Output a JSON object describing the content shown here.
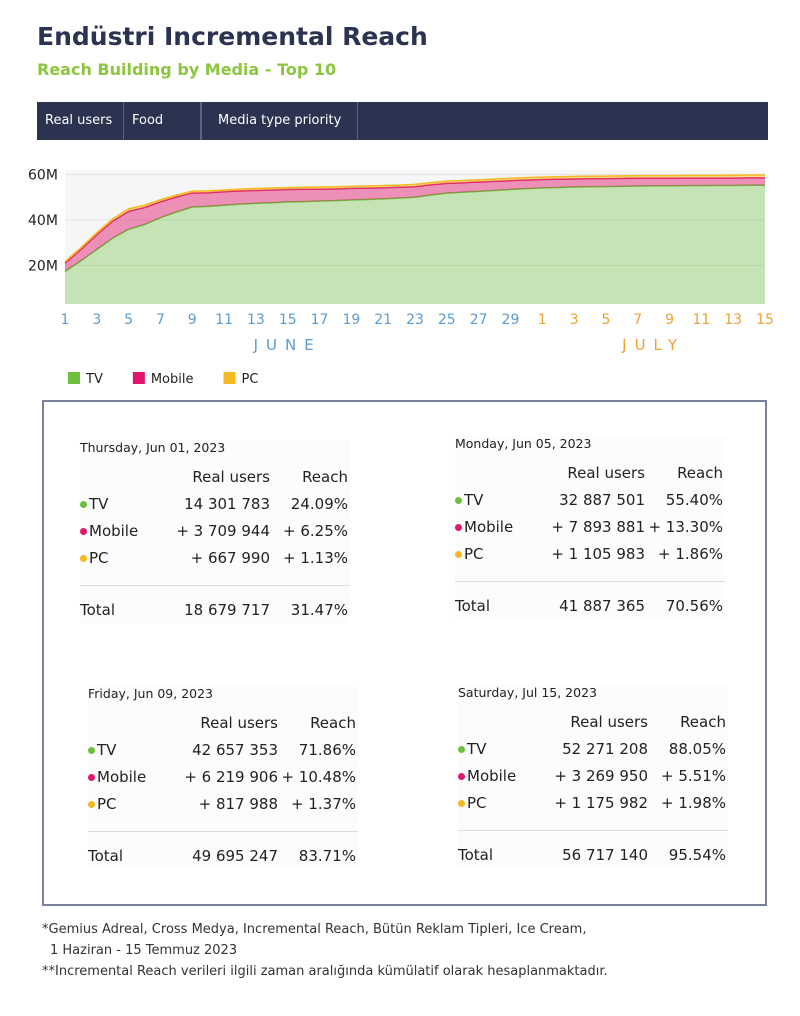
{
  "title": "Endüstri Incremental Reach",
  "subtitle": "Reach Building by Media - Top 10",
  "toolbar": [
    "Real users",
    "Food",
    "Media type priority"
  ],
  "chart_data": {
    "type": "stacked-area",
    "categories": [
      "1",
      null,
      "3",
      null,
      "5",
      null,
      "7",
      null,
      "9",
      null,
      "11",
      null,
      "13",
      null,
      "15",
      null,
      "17",
      null,
      "19",
      null,
      "21",
      null,
      "23",
      null,
      "25",
      null,
      "27",
      null,
      "29",
      null,
      "1",
      null,
      "3",
      null,
      "5",
      null,
      "7",
      null,
      "9",
      null,
      "11",
      null,
      "13",
      null,
      "15"
    ],
    "months": [
      "JUNE",
      "JULY"
    ],
    "series": [
      {
        "name": "TV",
        "color": "#6bbf3a",
        "values": [
          14.3,
          19,
          24,
          29,
          32.9,
          35,
          38,
          40.5,
          42.7,
          43,
          43.5,
          44,
          44.3,
          44.6,
          44.9,
          45.1,
          45.3,
          45.5,
          45.8,
          46,
          46.3,
          46.6,
          47,
          48,
          48.8,
          49.2,
          49.6,
          50,
          50.4,
          50.8,
          51.1,
          51.3,
          51.5,
          51.6,
          51.7,
          51.8,
          51.9,
          52,
          52,
          52.1,
          52.1,
          52.2,
          52.2,
          52.3,
          52.3
        ]
      },
      {
        "name": "Mobile",
        "color": "#e0156b",
        "values": [
          3.7,
          5,
          6.5,
          7.5,
          7.9,
          7.5,
          7,
          6.6,
          6.2,
          6,
          5.9,
          5.8,
          5.7,
          5.6,
          5.5,
          5.4,
          5.3,
          5.2,
          5.1,
          5,
          4.9,
          4.8,
          4.7,
          4.5,
          4.3,
          4.2,
          4.1,
          4,
          3.9,
          3.8,
          3.7,
          3.7,
          3.6,
          3.6,
          3.5,
          3.5,
          3.5,
          3.4,
          3.4,
          3.4,
          3.4,
          3.3,
          3.3,
          3.3,
          3.3
        ]
      },
      {
        "name": "PC",
        "color": "#f5b921",
        "values": [
          0.7,
          0.8,
          0.9,
          1,
          1.1,
          1,
          0.9,
          0.85,
          0.8,
          0.8,
          0.8,
          0.8,
          0.85,
          0.85,
          0.85,
          0.9,
          0.9,
          0.9,
          0.9,
          0.95,
          0.95,
          0.95,
          0.95,
          1,
          1,
          1,
          1,
          1,
          1.05,
          1.05,
          1.05,
          1.05,
          1.1,
          1.1,
          1.1,
          1.1,
          1.1,
          1.15,
          1.15,
          1.15,
          1.15,
          1.15,
          1.2,
          1.2,
          1.2
        ]
      }
    ],
    "ylim": [
      3,
      62
    ],
    "yticks": [
      {
        "value": 20,
        "label": "20M"
      },
      {
        "value": 40,
        "label": "40M"
      },
      {
        "value": 60,
        "label": "60M"
      }
    ],
    "legend": "bottom-left"
  },
  "panels": [
    {
      "date": "Thursday, Jun 01, 2023",
      "header": [
        "Real users",
        "Reach"
      ],
      "rows": [
        [
          "TV",
          "14 301 783",
          "24.09%"
        ],
        [
          "Mobile",
          "+ 3 709 944",
          "+ 6.25%"
        ],
        [
          "PC",
          "+ 667 990",
          "+ 1.13%"
        ]
      ],
      "total": [
        "Total",
        "18 679 717",
        "31.47%"
      ]
    },
    {
      "date": "Monday, Jun 05, 2023",
      "header": [
        "Real users",
        "Reach"
      ],
      "rows": [
        [
          "TV",
          "32 887 501",
          "55.40%"
        ],
        [
          "Mobile",
          "+ 7 893 881",
          "+ 13.30%"
        ],
        [
          "PC",
          "+ 1 105 983",
          "+ 1.86%"
        ]
      ],
      "total": [
        "Total",
        "41 887 365",
        "70.56%"
      ]
    },
    {
      "date": "Friday, Jun 09, 2023",
      "header": [
        "Real users",
        "Reach"
      ],
      "rows": [
        [
          "TV",
          "42 657 353",
          "71.86%"
        ],
        [
          "Mobile",
          "+ 6 219 906",
          "+ 10.48%"
        ],
        [
          "PC",
          "+ 817 988",
          "+ 1.37%"
        ]
      ],
      "total": [
        "Total",
        "49 695 247",
        "83.71%"
      ]
    },
    {
      "date": "Saturday, Jul 15, 2023",
      "header": [
        "Real users",
        "Reach"
      ],
      "rows": [
        [
          "TV",
          "52 271 208",
          "88.05%"
        ],
        [
          "Mobile",
          "+ 3 269 950",
          "+ 5.51%"
        ],
        [
          "PC",
          "+ 1 175 982",
          "+ 1.98%"
        ]
      ],
      "total": [
        "Total",
        "56 717 140",
        "95.54%"
      ]
    }
  ],
  "footnotes": [
    "*Gemius Adreal, Cross Medya, Incremental Reach, Bütün Reklam Tipleri, Ice Cream,",
    "1 Haziran - 15 Temmuz 2023",
    "**Incremental Reach verileri ilgili zaman aralığında kümülatif olarak hesaplanmaktadır."
  ]
}
